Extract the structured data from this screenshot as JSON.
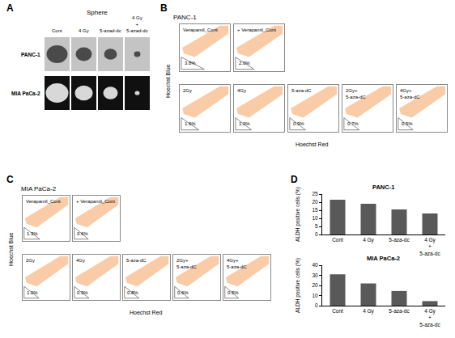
{
  "image_panel": {
    "panel": "A",
    "title": "Sphere",
    "columns": [
      "Cont",
      "4 Gy",
      "5-azad-dc",
      "4 Gy + 5-azad-dc"
    ],
    "rows": [
      "PANC-1",
      "MIA PaCa-2"
    ]
  },
  "chart_data": [
    {
      "type": "flow_cytometry",
      "panel": "B",
      "title": "PANC-1",
      "x_label": "Hoechst Red",
      "y_label": "Hoechst Blue",
      "categories": [
        "Verapamil_Cont",
        "+ Verapamil_Cont",
        "2Gy",
        "4Gy",
        "5-aza-dC",
        "2Gy+ 5-aza-dC",
        "4Gy+ 5-aza-dC"
      ],
      "values": [
        3.8,
        2.0,
        1.6,
        1.0,
        0.9,
        0.7,
        0.5
      ],
      "value_labels": [
        "3.8%",
        "2.0%",
        "1.6%",
        "1.0%",
        "0.9%",
        "0.7%",
        "0.5%"
      ],
      "color": "#f28c3c",
      "tick_labels": false
    },
    {
      "type": "flow_cytometry",
      "panel": "C",
      "title": "MIA PaCa-2",
      "x_label": "Hoechst Red",
      "y_label": "Hoechst Blue",
      "categories": [
        "Verapamil_Cont",
        "+ Verapamil_Cont",
        "2Gy",
        "4Gy",
        "5-aza-dC",
        "2Gy+ 5-aza-dC",
        "4Gy+ 5-aza-dC"
      ],
      "values": [
        1.3,
        0.6,
        1.0,
        0.9,
        0.8,
        0.6,
        0.5
      ],
      "value_labels": [
        "1.3%",
        "0.6%",
        "1.0%",
        "0.9%",
        "0.8%",
        "0.6%",
        "0.5%"
      ],
      "color": "#f28c3c",
      "tick_labels": false
    },
    {
      "type": "bar",
      "panel": "D",
      "title": "PANC-1",
      "y_label": "ALDH positive cells (%)",
      "categories": [
        "Cont",
        "4 Gy",
        "5-aza-dc",
        "4 Gy + 5-aza-dc"
      ],
      "values": [
        21.5,
        19,
        15.5,
        13
      ],
      "color": "#595959",
      "ylim": [
        0,
        25
      ],
      "yticks": [
        0,
        5,
        10,
        15,
        20,
        25
      ],
      "grid": false
    },
    {
      "type": "bar",
      "title": "MIA PaCa-2",
      "y_label": "ALDH positive cells (%)",
      "categories": [
        "Cont",
        "4 Gy",
        "5-aza-dc",
        "4 Gy + 5-aza-dc"
      ],
      "values": [
        31,
        22,
        14.5,
        4.5
      ],
      "color": "#595959",
      "ylim": [
        0,
        40
      ],
      "yticks": [
        0,
        10,
        20,
        30,
        40
      ],
      "grid": false
    }
  ]
}
